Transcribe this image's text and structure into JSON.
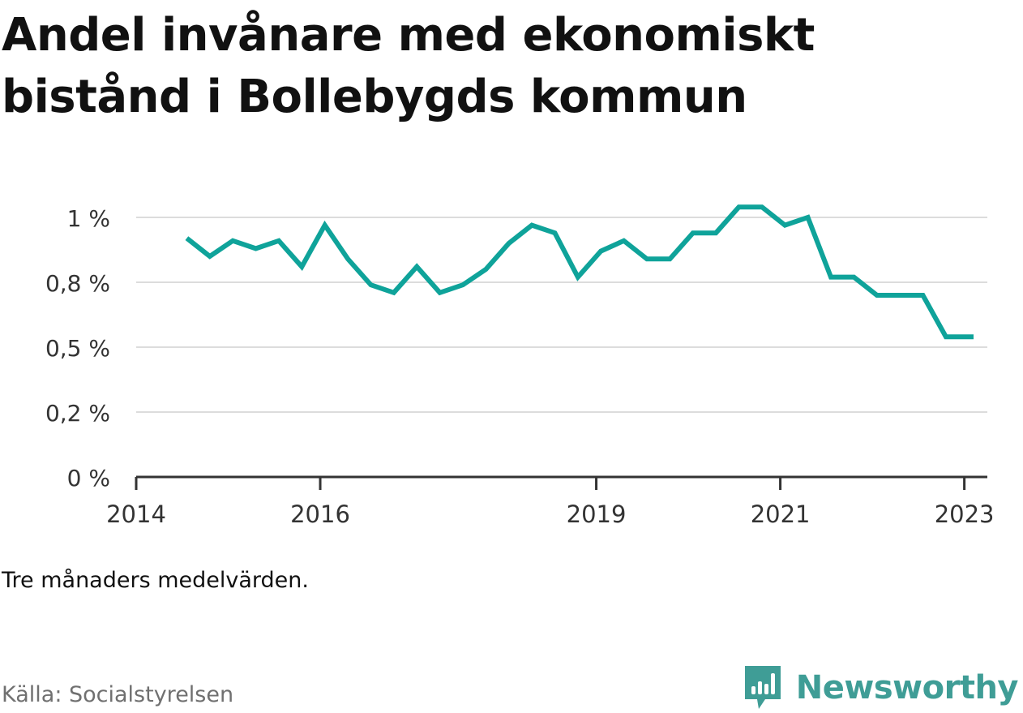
{
  "title": "Andel invånare med ekonomiskt bistånd i Bollebygds kommun",
  "note": "Tre månaders medelvärden.",
  "source": "Källa: Socialstyrelsen",
  "brand": {
    "name": "Newsworthy",
    "color": "#3f9d96",
    "logo_icon": "chat-bubble-bar-chart-icon"
  },
  "chart_data": {
    "type": "line",
    "line_color": "#0fa39a",
    "grid": true,
    "y_unit": "%",
    "ylim": [
      0,
      1.0
    ],
    "yticks": [
      0,
      0.25,
      0.5,
      0.75,
      1.0
    ],
    "ytick_labels": [
      "0 %",
      "0,2 %",
      "0,5 %",
      "0,8 %",
      "1 %"
    ],
    "xlim": [
      2014.0,
      2023.25
    ],
    "xticks": [
      2014,
      2016,
      2019,
      2021,
      2023
    ],
    "xtick_labels": [
      "2014",
      "2016",
      "2019",
      "2021",
      "2023"
    ],
    "series": [
      {
        "x": [
          2014.55,
          2014.8,
          2015.05,
          2015.3,
          2015.55,
          2015.8,
          2016.05,
          2016.3,
          2016.55,
          2016.8,
          2017.05,
          2017.3,
          2017.55,
          2017.8,
          2018.05,
          2018.3,
          2018.55,
          2018.8,
          2019.05,
          2019.3,
          2019.55,
          2019.8,
          2020.05,
          2020.3,
          2020.55,
          2020.8,
          2021.05,
          2021.3,
          2021.55,
          2021.8,
          2022.05,
          2022.3,
          2022.55,
          2022.8,
          2023.1
        ],
        "y": [
          0.92,
          0.85,
          0.91,
          0.88,
          0.91,
          0.81,
          0.97,
          0.84,
          0.74,
          0.71,
          0.81,
          0.71,
          0.74,
          0.8,
          0.9,
          0.97,
          0.94,
          0.77,
          0.87,
          0.91,
          0.84,
          0.84,
          0.94,
          0.94,
          1.04,
          1.04,
          0.97,
          1.0,
          0.77,
          0.77,
          0.7,
          0.7,
          0.7,
          0.54,
          0.54
        ]
      }
    ]
  }
}
